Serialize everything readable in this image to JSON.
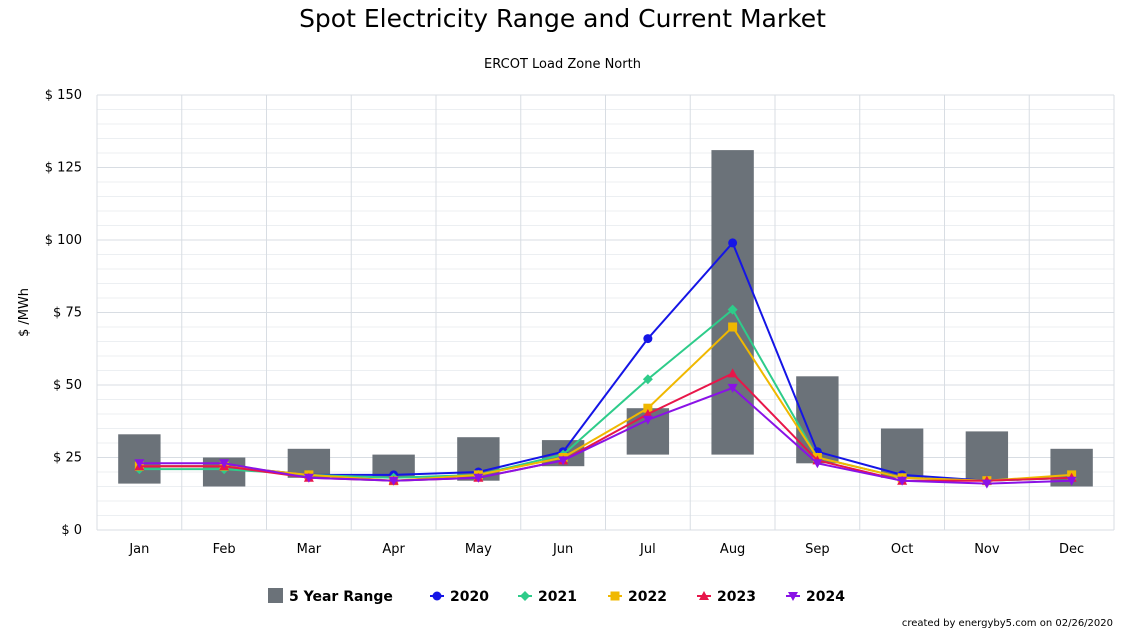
{
  "title": "Spot Electricity Range and Current Market",
  "subtitle": "ERCOT Load Zone North",
  "credit": "created by energyby5.com on 02/26/2020",
  "colors": {
    "range": "#6b7279",
    "grid": "#d8dde3",
    "2020": "#1515e6",
    "2021": "#2ecc8a",
    "2022": "#f0b800",
    "2023": "#e8164a",
    "2024": "#8a12e6"
  },
  "chart_data": {
    "type": "bar",
    "title": "Spot Electricity Range and Current Market",
    "subtitle": "ERCOT Load Zone North",
    "ylabel": "$ /MWh",
    "xlabel": "",
    "ylim": [
      0,
      150
    ],
    "yticks": [
      0,
      25,
      50,
      75,
      100,
      125,
      150
    ],
    "ytick_labels": [
      "$ 0",
      "$ 25",
      "$ 50",
      "$ 75",
      "$ 100",
      "$ 125",
      "$ 150"
    ],
    "categories": [
      "Jan",
      "Feb",
      "Mar",
      "Apr",
      "May",
      "Jun",
      "Jul",
      "Aug",
      "Sep",
      "Oct",
      "Nov",
      "Dec"
    ],
    "grid": true,
    "legend_position": "bottom",
    "range": {
      "name": "5 Year Range",
      "low": [
        16,
        15,
        18,
        18,
        17,
        22,
        26,
        26,
        23,
        18,
        17,
        15
      ],
      "high": [
        33,
        25,
        28,
        26,
        32,
        31,
        42,
        131,
        53,
        35,
        34,
        28
      ]
    },
    "series": [
      {
        "name": "2020",
        "marker": "circle",
        "values": [
          22,
          22,
          19,
          19,
          20,
          27,
          66,
          99,
          27,
          19,
          17,
          18
        ]
      },
      {
        "name": "2021",
        "marker": "diamond",
        "values": [
          21,
          21,
          19,
          18,
          19,
          26,
          52,
          76,
          25,
          18,
          17,
          18
        ]
      },
      {
        "name": "2022",
        "marker": "square",
        "values": [
          22,
          22,
          19,
          17,
          19,
          25,
          42,
          70,
          25,
          18,
          17,
          19
        ]
      },
      {
        "name": "2023",
        "marker": "triangle",
        "values": [
          22,
          22,
          18,
          17,
          18,
          24,
          40,
          54,
          24,
          17,
          17,
          18
        ]
      },
      {
        "name": "2024",
        "marker": "triangle-down",
        "values": [
          23,
          23,
          18,
          17,
          18,
          24,
          38,
          49,
          23,
          17,
          16,
          17
        ]
      }
    ]
  }
}
